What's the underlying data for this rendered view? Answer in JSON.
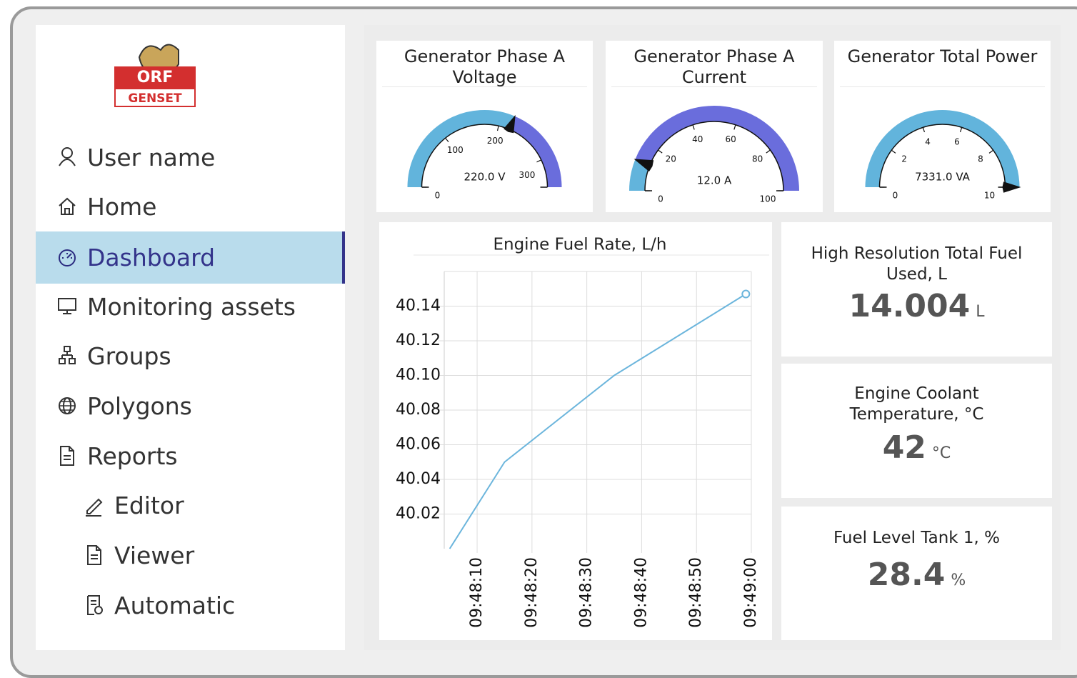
{
  "logo": {
    "brand": "ORF",
    "sub": "GENSET"
  },
  "nav": [
    "User name",
    "Home",
    "Dashboard",
    "Monitoring assets",
    "Groups",
    "Polygons",
    "Reports",
    "Editor",
    "Viewer",
    "Automatic"
  ],
  "active_nav": 2,
  "gauges": [
    {
      "title": "Generator Phase A Voltage",
      "value": 220.0,
      "value_label": "220.0 V",
      "range": [
        0,
        350
      ],
      "ticks": [
        0,
        100,
        200,
        300
      ]
    },
    {
      "title": "Generator Phase A Current",
      "value": 12.0,
      "value_label": "12.0 A",
      "range": [
        0,
        100
      ],
      "ticks": [
        0,
        20,
        40,
        60,
        80,
        100
      ]
    },
    {
      "title": "Generator Total Power",
      "value": 7331.0,
      "value_label": "7331.0 VA",
      "range": [
        0,
        10
      ],
      "ticks": [
        0,
        2,
        4,
        6,
        8,
        10
      ]
    }
  ],
  "chart_data": {
    "type": "line",
    "title": "Engine Fuel Rate, L/h",
    "x": [
      "09:48:05",
      "09:48:15",
      "09:48:35",
      "09:48:59"
    ],
    "series": [
      {
        "name": "Engine Fuel Rate",
        "color": "#6bb5dc",
        "values": [
          40.0,
          40.05,
          40.1,
          40.147
        ]
      }
    ],
    "xlim": [
      "09:48:04",
      "09:49:00"
    ],
    "xticks": [
      "09:48:10",
      "09:48:20",
      "09:48:30",
      "09:48:40",
      "09:48:50",
      "09:49:00"
    ],
    "ylim": [
      40.0,
      40.16
    ],
    "yticks": [
      {
        "value": 40.02,
        "label": "40.02"
      },
      {
        "value": 40.04,
        "label": "40.04"
      },
      {
        "value": 40.06,
        "label": "40.06"
      },
      {
        "value": 40.08,
        "label": "40.08"
      },
      {
        "value": 40.1,
        "label": "40.10"
      },
      {
        "value": 40.12,
        "label": "40.12"
      },
      {
        "value": 40.14,
        "label": "40.14"
      }
    ],
    "grid": true
  },
  "cards": [
    {
      "title": "High Resolution Total Fuel Used, L",
      "value": 14.004,
      "unit": "L"
    },
    {
      "title": "Engine Coolant Temperature, °C",
      "value": 42,
      "unit": "°C"
    },
    {
      "title": "Fuel Level Tank 1, %",
      "value": 28.4,
      "unit": "%"
    }
  ]
}
